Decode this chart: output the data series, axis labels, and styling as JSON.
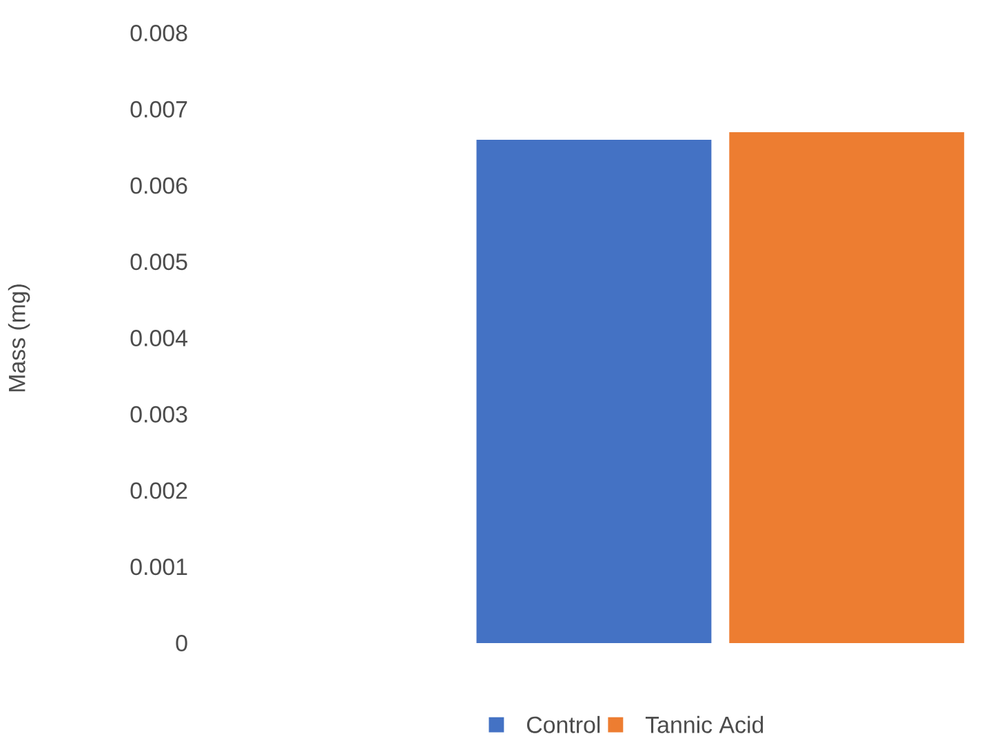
{
  "chart_data": {
    "type": "bar",
    "ylabel": "Mass (mg)",
    "categories": [
      null
    ],
    "series": [
      {
        "name": "Control",
        "color": "#4472c4",
        "values": [
          0.0066
        ]
      },
      {
        "name": "Tannic Acid",
        "color": "#ed7d31",
        "values": [
          0.0067
        ]
      }
    ],
    "ylim": [
      0,
      0.008
    ],
    "yticks": [
      0,
      0.001,
      0.002,
      0.003,
      0.004,
      0.005,
      0.006,
      0.007,
      0.008
    ],
    "legend": "bottom"
  }
}
